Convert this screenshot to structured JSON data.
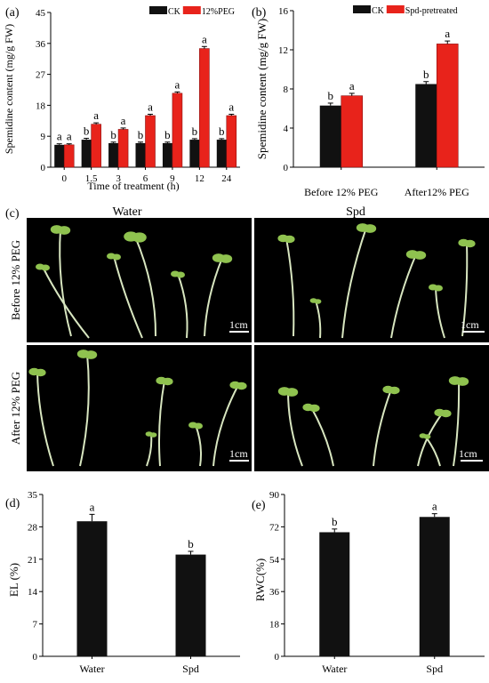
{
  "panel_labels": {
    "a": "(a)",
    "b": "(b)",
    "c": "(c)",
    "d": "(d)",
    "e": "(e)"
  },
  "colors": {
    "ck": "#111111",
    "treat": "#e8231b",
    "axis": "#000000"
  },
  "panel_c": {
    "col_labels": [
      "Water",
      "Spd"
    ],
    "row_labels": [
      "Before 12% PEG",
      "After 12% PEG"
    ],
    "scale_bar": "1cm"
  },
  "chart_data": [
    {
      "id": "a",
      "type": "bar",
      "title": "",
      "xlabel": "Time of treatment (h)",
      "ylabel": "Spemidine content (mg/g FW)",
      "ylim": [
        0,
        45
      ],
      "yticks": [
        0,
        9,
        18,
        27,
        36,
        45
      ],
      "categories": [
        "0",
        "1.5",
        "3",
        "6",
        "9",
        "12",
        "24"
      ],
      "legend": "top-right",
      "series": [
        {
          "name": "CK",
          "values": [
            6.5,
            8.0,
            7.0,
            7.0,
            7.0,
            8.0,
            8.0
          ],
          "errors": [
            0.3,
            0.4,
            0.3,
            0.3,
            0.3,
            0.3,
            0.3
          ],
          "letters": [
            "a",
            "b",
            "b",
            "b",
            "b",
            "b",
            "b"
          ]
        },
        {
          "name": "12%PEG",
          "values": [
            6.5,
            12.5,
            11.0,
            15.0,
            21.5,
            34.5,
            15.0
          ],
          "errors": [
            0.3,
            0.4,
            0.4,
            0.4,
            0.4,
            0.6,
            0.4
          ],
          "letters": [
            "a",
            "a",
            "a",
            "a",
            "a",
            "a",
            "a"
          ]
        }
      ]
    },
    {
      "id": "b",
      "type": "bar",
      "title": "",
      "xlabel": "",
      "ylabel": "Spemidine content (mg/g FW)",
      "ylim": [
        0,
        16
      ],
      "yticks": [
        0,
        4,
        8,
        12,
        16
      ],
      "categories": [
        "Before 12% PEG",
        "After12% PEG"
      ],
      "legend": "top-right",
      "series": [
        {
          "name": "CK",
          "values": [
            6.3,
            8.5
          ],
          "errors": [
            0.25,
            0.25
          ],
          "letters": [
            "b",
            "b"
          ]
        },
        {
          "name": "Spd-pretreated",
          "values": [
            7.3,
            12.6
          ],
          "errors": [
            0.25,
            0.3
          ],
          "letters": [
            "a",
            "a"
          ]
        }
      ]
    },
    {
      "id": "d",
      "type": "bar",
      "title": "",
      "xlabel": "",
      "ylabel": "EL (%)",
      "ylim": [
        0,
        35
      ],
      "yticks": [
        0,
        7,
        14,
        21,
        28,
        35
      ],
      "categories": [
        "Water",
        "Spd"
      ],
      "series": [
        {
          "name": "",
          "values": [
            29.2,
            22.0
          ],
          "errors": [
            1.5,
            0.7
          ],
          "letters": [
            "a",
            "b"
          ]
        }
      ]
    },
    {
      "id": "e",
      "type": "bar",
      "title": "",
      "xlabel": "",
      "ylabel": "RWC(%)",
      "ylim": [
        0,
        90
      ],
      "yticks": [
        0,
        18,
        36,
        54,
        72,
        90
      ],
      "categories": [
        "Water",
        "Spd"
      ],
      "series": [
        {
          "name": "",
          "values": [
            69.0,
            77.5
          ],
          "errors": [
            1.8,
            1.8
          ],
          "letters": [
            "b",
            "a"
          ]
        }
      ]
    }
  ]
}
